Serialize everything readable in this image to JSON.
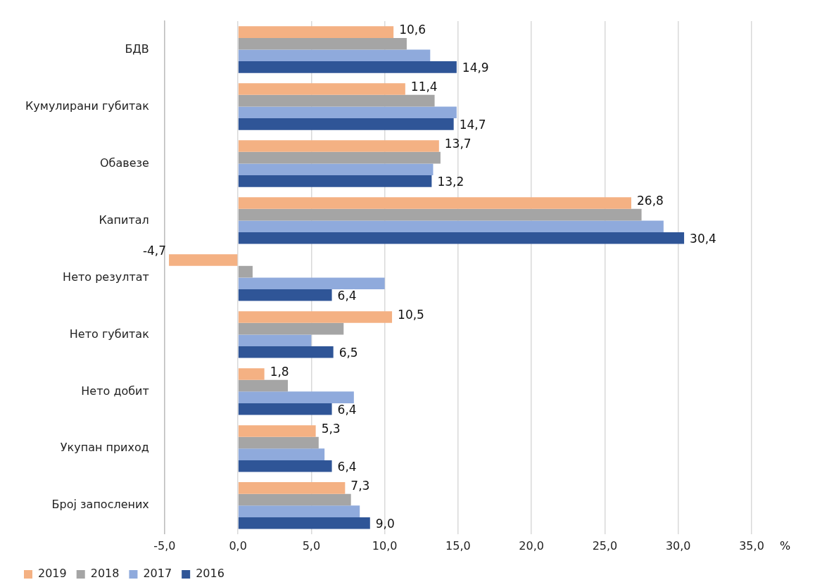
{
  "chart_data": {
    "type": "bar",
    "orientation": "horizontal",
    "xlabel": "%",
    "categories": [
      "БДВ",
      "Кумулирани губитак",
      "Обавезе",
      "Капитал",
      "Нето резултат",
      "Нето губитак",
      "Нето добит",
      "Укупан приход",
      "Број запослених"
    ],
    "series": [
      {
        "name": "2019",
        "color": "#f4b183",
        "values": [
          10.6,
          11.4,
          13.7,
          26.8,
          -4.7,
          10.5,
          1.8,
          5.3,
          7.3
        ],
        "value_labels": [
          "10,6",
          "11,4",
          "13,7",
          "26,8",
          "-4,7",
          "10,5",
          "1,8",
          "5,3",
          "7,3"
        ]
      },
      {
        "name": "2018",
        "color": "#a5a5a5",
        "values": [
          11.5,
          13.4,
          13.8,
          27.5,
          1.0,
          7.2,
          3.4,
          5.5,
          7.7
        ]
      },
      {
        "name": "2017",
        "color": "#8faadc",
        "values": [
          13.1,
          14.9,
          13.3,
          29.0,
          10.0,
          5.0,
          7.9,
          5.9,
          8.3
        ]
      },
      {
        "name": "2016",
        "color": "#2f5597",
        "values": [
          14.9,
          14.7,
          13.2,
          30.4,
          6.4,
          6.5,
          6.4,
          6.4,
          9.0
        ],
        "value_labels": [
          "14,9",
          "14,7",
          "13,2",
          "30,4",
          "6,4",
          "6,5",
          "6,4",
          "6,4",
          "9,0"
        ]
      }
    ],
    "xlim": [
      -5,
      35
    ],
    "xticks": [
      {
        "value": -5,
        "label": "-5,0"
      },
      {
        "value": 0,
        "label": "0,0"
      },
      {
        "value": 5,
        "label": "5,0"
      },
      {
        "value": 10,
        "label": "10,0"
      },
      {
        "value": 15,
        "label": "15,0"
      },
      {
        "value": 20,
        "label": "20,0"
      },
      {
        "value": 25,
        "label": "25,0"
      },
      {
        "value": 30,
        "label": "30,0"
      },
      {
        "value": 35,
        "label": "35,0"
      }
    ],
    "grid": "x",
    "legend": "bottom left"
  }
}
